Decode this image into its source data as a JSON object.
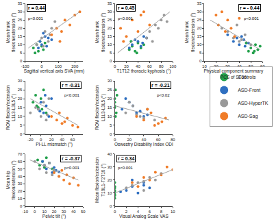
{
  "chart_data": [
    {
      "type": "scatter",
      "x_label": "Sagittal vertical axis SVA (mm)",
      "y_label": "Mean trunk\nflexion/extension (°)",
      "xlim": [
        -100,
        250
      ],
      "xticks": [
        -100,
        0,
        100,
        200
      ],
      "ylim": [
        0,
        35
      ],
      "yticks": [
        0,
        5,
        10,
        15,
        20,
        25,
        30,
        35
      ],
      "grid": false,
      "legend": "right",
      "r_label": "r = 0.44",
      "p_label": "p<0.001",
      "trend": {
        "x": [
          -80,
          230
        ],
        "y": [
          8,
          30
        ],
        "color": "#a0a0a0"
      },
      "series": [
        {
          "name": "Controls",
          "color": "#22a04b",
          "x": [
            -50,
            -30,
            -20,
            -10,
            0,
            10,
            20,
            -40
          ],
          "y": [
            8,
            10,
            6,
            12,
            9,
            7,
            11,
            5
          ]
        },
        {
          "name": "ASD-Front",
          "color": "#2f6fc0",
          "x": [
            -10,
            0,
            20,
            30,
            40,
            10,
            60,
            -20
          ],
          "y": [
            12,
            10,
            15,
            9,
            14,
            17,
            13,
            8
          ]
        },
        {
          "name": "ASD-HyperTK",
          "color": "#999999",
          "x": [
            -30,
            0,
            20,
            40,
            60,
            80,
            10,
            50
          ],
          "y": [
            10,
            14,
            18,
            12,
            20,
            24,
            9,
            16
          ]
        },
        {
          "name": "ASD-Sag",
          "color": "#f07c28",
          "x": [
            60,
            90,
            110,
            140,
            170,
            200,
            230,
            120
          ],
          "y": [
            16,
            20,
            12,
            25,
            22,
            28,
            30,
            18
          ]
        }
      ]
    },
    {
      "type": "scatter",
      "x_label": "T1T12 thoracic kyphosis (°)",
      "y_label": "Mean trunk\nflexion/extension (°)",
      "xlim": [
        0,
        100
      ],
      "xticks": [
        0,
        20,
        40,
        60,
        80,
        100
      ],
      "ylim": [
        0,
        35
      ],
      "yticks": [
        0,
        5,
        10,
        15,
        20,
        25,
        30,
        35
      ],
      "grid": false,
      "r_label": "r = 0.45",
      "p_label": "p<0.001",
      "trend": {
        "x": [
          5,
          95
        ],
        "y": [
          5,
          30
        ],
        "color": "#a0a0a0"
      },
      "series": [
        {
          "name": "Controls",
          "color": "#22a04b",
          "x": [
            25,
            30,
            35,
            40,
            45,
            28,
            50,
            38
          ],
          "y": [
            7,
            9,
            6,
            11,
            8,
            12,
            10,
            5
          ]
        },
        {
          "name": "ASD-Front",
          "color": "#2f6fc0",
          "x": [
            30,
            35,
            45,
            50,
            40,
            55,
            25,
            48
          ],
          "y": [
            10,
            13,
            9,
            15,
            12,
            14,
            8,
            11
          ]
        },
        {
          "name": "ASD-HyperTK",
          "color": "#999999",
          "x": [
            55,
            60,
            65,
            70,
            75,
            80,
            85,
            90
          ],
          "y": [
            14,
            18,
            12,
            22,
            20,
            25,
            28,
            24
          ]
        },
        {
          "name": "ASD-Sag",
          "color": "#f07c28",
          "x": [
            10,
            20,
            30,
            40,
            50,
            60,
            15,
            45
          ],
          "y": [
            20,
            15,
            25,
            18,
            30,
            22,
            12,
            28
          ]
        }
      ]
    },
    {
      "type": "scatter",
      "x_label": "Physical component summary\nPCS of SF36",
      "y_label": "Mean trunk\nflexion/extension (°)",
      "xlim": [
        10,
        60
      ],
      "xticks": [
        10,
        20,
        30,
        40,
        50,
        60
      ],
      "ylim": [
        0,
        35
      ],
      "yticks": [
        0,
        5,
        10,
        15,
        20,
        25,
        30,
        35
      ],
      "grid": false,
      "r_label": "r = - 0.44",
      "p_label": "p<0.001",
      "trend": {
        "x": [
          15,
          58
        ],
        "y": [
          25,
          7
        ],
        "color": "#a0a0a0"
      },
      "series": [
        {
          "name": "Controls",
          "color": "#22a04b",
          "x": [
            48,
            50,
            52,
            54,
            56,
            58,
            46,
            53
          ],
          "y": [
            6,
            8,
            5,
            10,
            7,
            9,
            11,
            6
          ]
        },
        {
          "name": "ASD-Front",
          "color": "#2f6fc0",
          "x": [
            35,
            40,
            42,
            45,
            38,
            48,
            30,
            44
          ],
          "y": [
            12,
            10,
            15,
            9,
            14,
            11,
            16,
            13
          ]
        },
        {
          "name": "ASD-HyperTK",
          "color": "#999999",
          "x": [
            30,
            35,
            40,
            45,
            50,
            25,
            38,
            42
          ],
          "y": [
            18,
            14,
            12,
            16,
            10,
            20,
            22,
            13
          ]
        },
        {
          "name": "ASD-Sag",
          "color": "#f07c28",
          "x": [
            20,
            22,
            25,
            28,
            30,
            33,
            36,
            40
          ],
          "y": [
            28,
            22,
            30,
            18,
            25,
            20,
            15,
            26
          ]
        }
      ]
    },
    {
      "type": "scatter",
      "x_label": "PI-LL mismatch (°)",
      "y_label": "ROM flexion/extension\nL1L3-L3L5 (°)",
      "xlim": [
        -30,
        80
      ],
      "xticks": [
        -20,
        0,
        20,
        40,
        60
      ],
      "ylim": [
        0,
        30
      ],
      "yticks": [
        0,
        5,
        10,
        15,
        20,
        25,
        30
      ],
      "grid": false,
      "r_label": "r = -0.31",
      "p_label": "p<0.001",
      "trend": {
        "x": [
          -20,
          70
        ],
        "y": [
          20,
          5
        ],
        "color": "#a0a0a0"
      },
      "series": [
        {
          "name": "Controls",
          "color": "#22a04b",
          "x": [
            -15,
            -10,
            -5,
            0,
            5,
            10,
            -8,
            2
          ],
          "y": [
            18,
            22,
            15,
            20,
            25,
            12,
            16,
            14
          ]
        },
        {
          "name": "ASD-Front",
          "color": "#2f6fc0",
          "x": [
            -5,
            0,
            5,
            10,
            15,
            20,
            8,
            -2
          ],
          "y": [
            14,
            18,
            12,
            16,
            10,
            20,
            22,
            13
          ]
        },
        {
          "name": "ASD-HyperTK",
          "color": "#999999",
          "x": [
            -20,
            -10,
            0,
            5,
            10,
            15,
            -5,
            12
          ],
          "y": [
            12,
            15,
            10,
            18,
            8,
            20,
            14,
            11
          ]
        },
        {
          "name": "ASD-Sag",
          "color": "#f07c28",
          "x": [
            20,
            30,
            35,
            40,
            50,
            60,
            70,
            45
          ],
          "y": [
            10,
            8,
            12,
            6,
            9,
            5,
            4,
            7
          ]
        }
      ]
    },
    {
      "type": "scatter",
      "x_label": "Oswestry Disability Index ODI",
      "y_label": "ROM flexion/extension\nL1L3-L3L5 (°)",
      "xlim": [
        0,
        80
      ],
      "xticks": [
        0,
        20,
        40,
        60,
        80
      ],
      "ylim": [
        0,
        30
      ],
      "yticks": [
        0,
        5,
        10,
        15,
        20,
        25,
        30
      ],
      "grid": false,
      "r_label": "r = -0.21",
      "p_label": "p<0.02",
      "trend": {
        "x": [
          0,
          75
        ],
        "y": [
          16,
          8
        ],
        "color": "#a0a0a0"
      },
      "series": [
        {
          "name": "Controls",
          "color": "#22a04b",
          "x": [
            0,
            0,
            1,
            2,
            0,
            3,
            1,
            0
          ],
          "y": [
            20,
            15,
            25,
            12,
            18,
            22,
            10,
            16
          ]
        },
        {
          "name": "ASD-Front",
          "color": "#2f6fc0",
          "x": [
            10,
            20,
            30,
            40,
            25,
            15,
            35,
            45
          ],
          "y": [
            14,
            18,
            12,
            10,
            16,
            20,
            13,
            11
          ]
        },
        {
          "name": "ASD-HyperTK",
          "color": "#999999",
          "x": [
            15,
            25,
            35,
            45,
            55,
            20,
            30,
            40
          ],
          "y": [
            12,
            16,
            10,
            14,
            8,
            18,
            11,
            9
          ]
        },
        {
          "name": "ASD-Sag",
          "color": "#f07c28",
          "x": [
            30,
            40,
            50,
            60,
            70,
            45,
            55,
            65
          ],
          "y": [
            10,
            8,
            12,
            6,
            9,
            14,
            5,
            7
          ]
        }
      ]
    },
    {
      "type": "scatter",
      "x_label": "Pelvic tilt (°)",
      "y_label": "Mean hip\nflexion/extension (°)",
      "xlim": [
        -10,
        50
      ],
      "xticks": [
        -10,
        0,
        10,
        20,
        30,
        40,
        50
      ],
      "ylim": [
        0,
        70
      ],
      "yticks": [
        0,
        10,
        20,
        30,
        40,
        50,
        60,
        70
      ],
      "grid": false,
      "r_label": "r = -0.37",
      "p_label": "p<0.001",
      "trend": {
        "x": [
          -5,
          45
        ],
        "y": [
          62,
          35
        ],
        "color": "#a0a0a0"
      },
      "series": [
        {
          "name": "Controls",
          "color": "#22a04b",
          "x": [
            5,
            8,
            10,
            12,
            15,
            18,
            20,
            3
          ],
          "y": [
            55,
            60,
            52,
            65,
            58,
            50,
            48,
            62
          ]
        },
        {
          "name": "ASD-Front",
          "color": "#2f6fc0",
          "x": [
            10,
            12,
            15,
            18,
            20,
            22,
            8,
            25
          ],
          "y": [
            55,
            50,
            58,
            45,
            52,
            48,
            60,
            46
          ]
        },
        {
          "name": "ASD-HyperTK",
          "color": "#999999",
          "x": [
            5,
            10,
            12,
            15,
            18,
            20,
            0,
            25
          ],
          "y": [
            50,
            55,
            45,
            58,
            42,
            48,
            60,
            40
          ]
        },
        {
          "name": "ASD-Sag",
          "color": "#f07c28",
          "x": [
            20,
            25,
            28,
            30,
            33,
            36,
            40,
            45
          ],
          "y": [
            45,
            40,
            48,
            35,
            42,
            30,
            38,
            28
          ]
        }
      ]
    },
    {
      "type": "scatter",
      "x_label": "Visual Analog Scale VAS",
      "y_label": "Mean flexion/extension\nT10L1-T2T10 (°)",
      "xlim": [
        0,
        10
      ],
      "xticks": [
        0,
        2,
        4,
        6,
        8,
        10
      ],
      "ylim": [
        0,
        40
      ],
      "yticks": [
        0,
        10,
        20,
        30,
        40
      ],
      "grid": false,
      "r_label": "r = 0.34",
      "p_label": "p<0.001",
      "trend": {
        "x": [
          0,
          10
        ],
        "y": [
          10,
          28
        ],
        "color": "#a0a0a0"
      },
      "series": [
        {
          "name": "Controls",
          "color": "#22a04b",
          "x": [
            0,
            0,
            0,
            0,
            0,
            0,
            0,
            0
          ],
          "y": [
            6,
            9,
            12,
            15,
            18,
            8,
            11,
            14
          ]
        },
        {
          "name": "ASD-Front",
          "color": "#2f6fc0",
          "x": [
            2,
            3,
            4,
            5,
            6,
            3,
            5,
            1
          ],
          "y": [
            12,
            15,
            10,
            18,
            14,
            20,
            16,
            11
          ]
        },
        {
          "name": "ASD-HyperTK",
          "color": "#999999",
          "x": [
            2,
            4,
            5,
            6,
            7,
            8,
            3,
            5
          ],
          "y": [
            14,
            18,
            12,
            22,
            20,
            25,
            16,
            19
          ]
        },
        {
          "name": "ASD-Sag",
          "color": "#f07c28",
          "x": [
            3,
            4,
            5,
            6,
            7,
            8,
            9,
            10
          ],
          "y": [
            18,
            15,
            22,
            20,
            26,
            24,
            30,
            28
          ]
        }
      ]
    }
  ]
}
